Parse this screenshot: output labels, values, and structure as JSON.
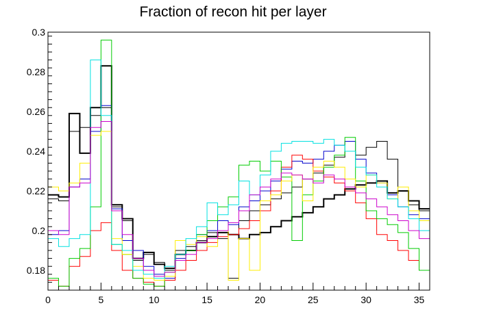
{
  "chart_data": {
    "type": "line",
    "title": "Fraction of recon hit per layer",
    "xlabel": "",
    "ylabel": "",
    "xlim": [
      0,
      36
    ],
    "ylim": [
      0.17,
      0.3
    ],
    "bin_width": 1,
    "x_ticks": [
      0,
      5,
      10,
      15,
      20,
      25,
      30,
      35
    ],
    "y_ticks": [
      0.18,
      0.2,
      0.22,
      0.24,
      0.26,
      0.28,
      0.3
    ],
    "y_tick_labels": [
      "0.18",
      "0.2",
      "0.22",
      "0.24",
      "0.26",
      "0.28",
      "0.3"
    ],
    "grid": false,
    "legend": "none",
    "series": [
      {
        "color": "#000000",
        "bold": true,
        "values": [
          0.218,
          0.217,
          0.259,
          0.239,
          0.262,
          0.283,
          0.213,
          0.206,
          0.186,
          0.189,
          0.183,
          0.181,
          0.188,
          0.19,
          0.194,
          0.197,
          0.199,
          0.198,
          0.196,
          0.198,
          0.199,
          0.202,
          0.205,
          0.207,
          0.209,
          0.212,
          0.216,
          0.218,
          0.221,
          0.223,
          0.224,
          0.225,
          0.219,
          0.22,
          0.215,
          0.211
        ]
      },
      {
        "color": "#000000",
        "bold": false,
        "values": [
          0.216,
          0.215,
          0.25,
          0.252,
          0.258,
          0.262,
          0.212,
          0.205,
          0.185,
          0.188,
          0.184,
          0.18,
          0.19,
          0.192,
          0.195,
          0.199,
          0.196,
          0.176,
          0.205,
          0.21,
          0.213,
          0.216,
          0.219,
          0.222,
          0.226,
          0.229,
          0.233,
          0.237,
          0.24,
          0.238,
          0.242,
          0.245,
          0.236,
          0.22,
          0.213,
          0.21
        ]
      },
      {
        "color": "#0000cc",
        "bold": false,
        "values": [
          0.198,
          0.2,
          0.222,
          0.226,
          0.25,
          0.263,
          0.211,
          0.195,
          0.19,
          0.182,
          0.178,
          0.176,
          0.186,
          0.19,
          0.198,
          0.2,
          0.205,
          0.203,
          0.212,
          0.215,
          0.22,
          0.225,
          0.231,
          0.235,
          0.234,
          0.236,
          0.24,
          0.243,
          0.245,
          0.236,
          0.229,
          0.224,
          0.218,
          0.212,
          0.208,
          0.206
        ]
      },
      {
        "color": "#ff0000",
        "bold": false,
        "values": [
          0.175,
          0.172,
          0.182,
          0.187,
          0.2,
          0.204,
          0.19,
          0.18,
          0.176,
          0.174,
          0.172,
          0.175,
          0.18,
          0.185,
          0.19,
          0.194,
          0.197,
          0.198,
          0.201,
          0.205,
          0.21,
          0.22,
          0.232,
          0.238,
          0.236,
          0.23,
          0.227,
          0.224,
          0.22,
          0.214,
          0.206,
          0.198,
          0.195,
          0.19,
          0.185,
          0.18
        ]
      },
      {
        "color": "#00cc00",
        "bold": false,
        "values": [
          0.176,
          0.172,
          0.186,
          0.191,
          0.212,
          0.296,
          0.193,
          0.188,
          0.176,
          0.173,
          0.172,
          0.179,
          0.185,
          0.19,
          0.198,
          0.205,
          0.212,
          0.217,
          0.233,
          0.235,
          0.23,
          0.235,
          0.227,
          0.195,
          0.218,
          0.225,
          0.232,
          0.238,
          0.247,
          0.225,
          0.21,
          0.206,
          0.203,
          0.199,
          0.191,
          0.18
        ]
      },
      {
        "color": "#ffee00",
        "bold": false,
        "values": [
          0.222,
          0.22,
          0.224,
          0.234,
          0.248,
          0.25,
          0.196,
          0.188,
          0.182,
          0.176,
          0.175,
          0.177,
          0.195,
          0.193,
          0.197,
          0.192,
          0.2,
          0.175,
          0.196,
          0.18,
          0.215,
          0.218,
          0.225,
          0.228,
          0.215,
          0.232,
          0.235,
          0.232,
          0.226,
          0.222,
          0.228,
          0.224,
          0.216,
          0.222,
          0.21,
          0.205
        ]
      },
      {
        "color": "#00e0e0",
        "bold": false,
        "values": [
          0.196,
          0.192,
          0.196,
          0.198,
          0.286,
          0.258,
          0.193,
          0.19,
          0.18,
          0.178,
          0.176,
          0.182,
          0.188,
          0.196,
          0.202,
          0.214,
          0.208,
          0.213,
          0.225,
          0.218,
          0.228,
          0.24,
          0.244,
          0.245,
          0.245,
          0.244,
          0.246,
          0.243,
          0.24,
          0.232,
          0.228,
          0.222,
          0.216,
          0.212,
          0.206,
          0.2
        ]
      },
      {
        "color": "#cc00cc",
        "bold": false,
        "values": [
          0.2,
          0.198,
          0.222,
          0.224,
          0.252,
          0.255,
          0.21,
          0.198,
          0.186,
          0.18,
          0.177,
          0.179,
          0.185,
          0.188,
          0.194,
          0.196,
          0.2,
          0.204,
          0.21,
          0.218,
          0.222,
          0.226,
          0.229,
          0.228,
          0.226,
          0.224,
          0.228,
          0.226,
          0.222,
          0.219,
          0.216,
          0.212,
          0.208,
          0.205,
          0.2,
          0.196
        ]
      }
    ]
  }
}
